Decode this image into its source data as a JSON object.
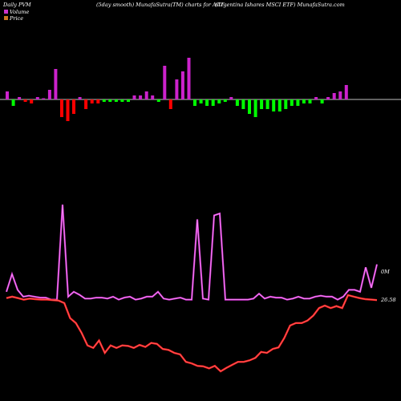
{
  "header": {
    "left": "Daily PVM",
    "middle": "(5day smooth) MunafaSutra(TM) charts for AGT",
    "right": "(Argentina Ishares MSCI ETF) MunafaSutra.com"
  },
  "legend": [
    {
      "label": "Volume",
      "color": "#cc33cc"
    },
    {
      "label": "Price",
      "color": "#cc7722"
    }
  ],
  "value_labels": {
    "volume_end": "0M",
    "price_end": "26.58"
  },
  "chart_data": [
    {
      "type": "bar",
      "name": "price-volume-momentum",
      "baseline": 0,
      "colors": {
        "positive": "#cc22cc",
        "negative": "#ff0000",
        "green": "#00ff00"
      },
      "values": [
        1,
        -0.8,
        0.3,
        -0.3,
        -0.5,
        0.3,
        0,
        1.2,
        3.8,
        -2.2,
        -2.7,
        -1.8,
        0.3,
        -1.2,
        -0.5,
        -0.5,
        -0.3,
        -0.3,
        -0.3,
        -0.3,
        -0.3,
        0.5,
        0.5,
        1,
        0.5,
        -0.3,
        4.2,
        -1.2,
        2.5,
        3.5,
        5.2,
        -0.8,
        -0.5,
        -0.8,
        -0.8,
        -0.5,
        -0.3,
        0.3,
        -0.8,
        -1.2,
        -1.8,
        -2.2,
        -1.2,
        -1.2,
        -1.5,
        -1.5,
        -1.2,
        -0.8,
        -0.8,
        -0.5,
        -0.5,
        0.3,
        -0.5,
        0.3,
        0.8,
        1,
        1.8
      ],
      "bar_kind": [
        "p",
        "g",
        "p",
        "r",
        "r",
        "p",
        "p",
        "p",
        "p",
        "r",
        "r",
        "r",
        "p",
        "r",
        "r",
        "r",
        "g",
        "g",
        "g",
        "g",
        "g",
        "p",
        "p",
        "p",
        "p",
        "g",
        "p",
        "r",
        "p",
        "p",
        "p",
        "g",
        "g",
        "g",
        "g",
        "g",
        "g",
        "p",
        "g",
        "g",
        "g",
        "g",
        "g",
        "g",
        "g",
        "g",
        "g",
        "g",
        "g",
        "g",
        "g",
        "p",
        "g",
        "p",
        "p",
        "p",
        "p"
      ]
    },
    {
      "type": "line",
      "name": "Volume",
      "color": "#cc33cc",
      "values": [
        0.1,
        0.28,
        0.12,
        0.05,
        0.06,
        0.05,
        0.04,
        0.04,
        0.02,
        0.02,
        0.99,
        0.05,
        0.1,
        0.07,
        0.03,
        0.03,
        0.04,
        0.04,
        0.03,
        0.05,
        0.02,
        0.04,
        0.05,
        0.02,
        0.03,
        0.05,
        0.05,
        0.1,
        0.03,
        0.02,
        0.03,
        0.04,
        0.02,
        0.02,
        0.84,
        0.03,
        0.02,
        0.88,
        0.9,
        0.02,
        0.02,
        0.02,
        0.02,
        0.02,
        0.03,
        0.08,
        0.03,
        0.05,
        0.04,
        0.04,
        0.02,
        0.03,
        0.05,
        0.03,
        0.03,
        0.05,
        0.06,
        0.05,
        0.05,
        0.02,
        0.05,
        0.12,
        0.12,
        0.1,
        0.35,
        0.14,
        0.38
      ]
    },
    {
      "type": "line",
      "name": "Price",
      "color": "#ff2222",
      "values": [
        27.0,
        27.3,
        27.0,
        26.7,
        26.9,
        26.8,
        26.7,
        26.7,
        26.6,
        26.5,
        26.0,
        23.0,
        22.0,
        20.0,
        17.5,
        17.0,
        18.5,
        16.0,
        17.5,
        17.0,
        17.5,
        17.4,
        17.0,
        17.6,
        17.2,
        18.0,
        17.8,
        16.8,
        16.6,
        16.0,
        15.7,
        14.2,
        13.9,
        13.4,
        13.3,
        12.9,
        13.4,
        12.3,
        13.0,
        13.6,
        14.2,
        14.2,
        14.5,
        15.0,
        16.2,
        16.0,
        16.8,
        17.1,
        19.0,
        21.5,
        22.0,
        22.0,
        22.5,
        23.5,
        25.0,
        25.5,
        25.0,
        25.4,
        25.0,
        27.6,
        27.3,
        27.0,
        26.8,
        26.7,
        26.6
      ]
    }
  ]
}
